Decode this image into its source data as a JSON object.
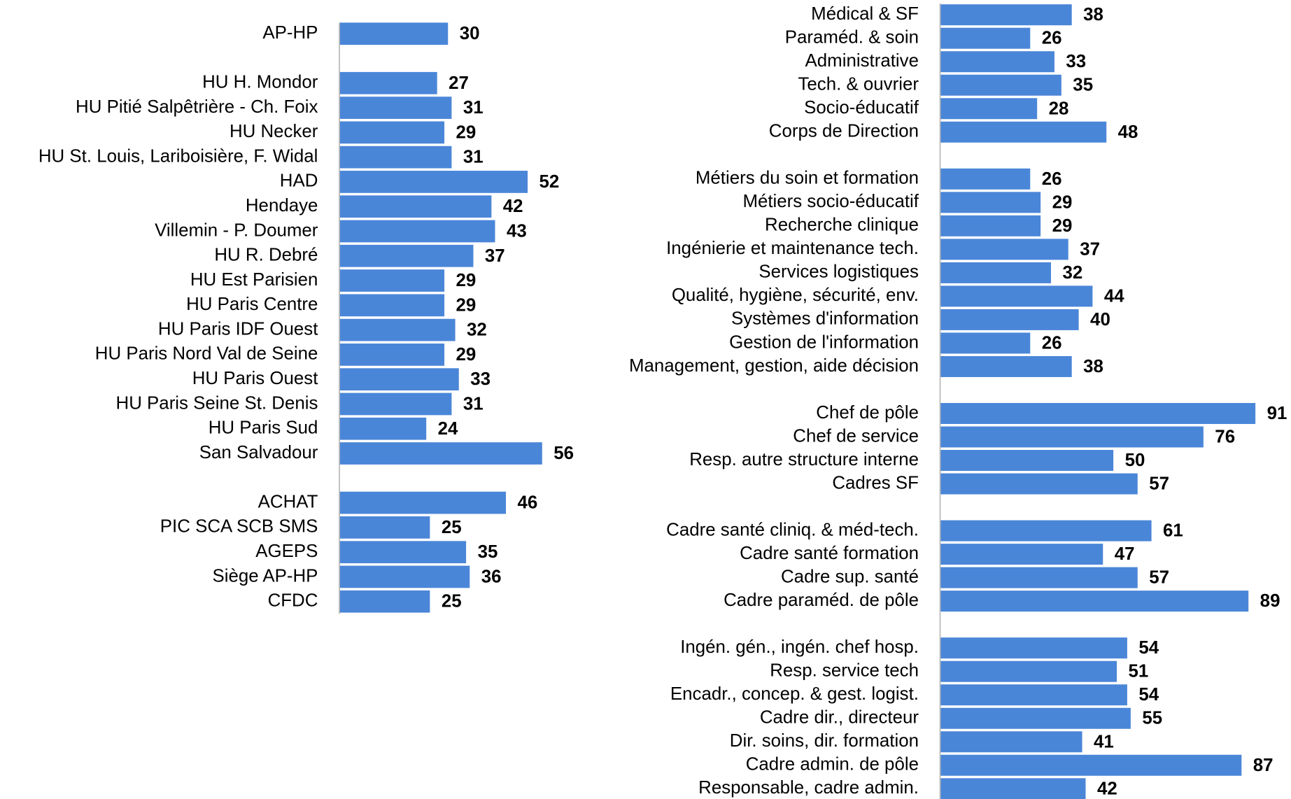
{
  "chart_data": [
    {
      "type": "barh",
      "color": "#4a86d8",
      "xlim": [
        0,
        100
      ],
      "categories": [
        "AP-HP",
        null,
        "HU H. Mondor",
        "HU Pitié Salpêtrière - Ch. Foix",
        "HU Necker",
        "HU St. Louis, Lariboisière, F. Widal",
        "HAD",
        "Hendaye",
        "Villemin - P. Doumer",
        "HU R. Debré",
        "HU Est Parisien",
        "HU Paris Centre",
        "HU Paris IDF Ouest",
        "HU Paris Nord Val de Seine",
        "HU Paris Ouest",
        "HU Paris Seine St. Denis",
        "HU Paris Sud",
        "San Salvadour",
        null,
        "ACHAT",
        "PIC SCA SCB SMS",
        "AGEPS",
        "Siège AP-HP",
        "CFDC"
      ],
      "values": [
        30,
        null,
        27,
        31,
        29,
        31,
        52,
        42,
        43,
        37,
        29,
        29,
        32,
        29,
        33,
        31,
        24,
        56,
        null,
        46,
        25,
        35,
        36,
        25
      ]
    },
    {
      "type": "barh",
      "color": "#4a86d8",
      "xlim": [
        0,
        100
      ],
      "categories": [
        "Médical & SF",
        "Paraméd. & soin",
        "Administrative",
        "Tech. & ouvrier",
        "Socio-éducatif",
        "Corps de Direction",
        null,
        "Métiers du soin et formation",
        "Métiers socio-éducatif",
        "Recherche clinique",
        "Ingénierie et maintenance tech.",
        "Services logistiques",
        "Qualité, hygiène, sécurité, env.",
        "Systèmes d'information",
        "Gestion de l'information",
        "Management, gestion, aide décision",
        null,
        "Chef de pôle",
        "Chef de service",
        "Resp. autre structure interne",
        "Cadres SF",
        null,
        "Cadre santé cliniq. & méd-tech.",
        "Cadre santé formation",
        "Cadre sup. santé",
        "Cadre paraméd. de pôle",
        null,
        "Ingén. gén., ingén. chef hosp.",
        "Resp. service tech",
        "Encadr., concep. & gest. logist.",
        "Cadre dir., directeur",
        "Dir.  soins, dir. formation",
        "Cadre admin. de pôle",
        "Responsable, cadre admin."
      ],
      "values": [
        38,
        26,
        33,
        35,
        28,
        48,
        null,
        26,
        29,
        29,
        37,
        32,
        44,
        40,
        26,
        38,
        null,
        91,
        76,
        50,
        57,
        null,
        61,
        47,
        57,
        89,
        null,
        54,
        51,
        54,
        55,
        41,
        87,
        42
      ]
    }
  ]
}
